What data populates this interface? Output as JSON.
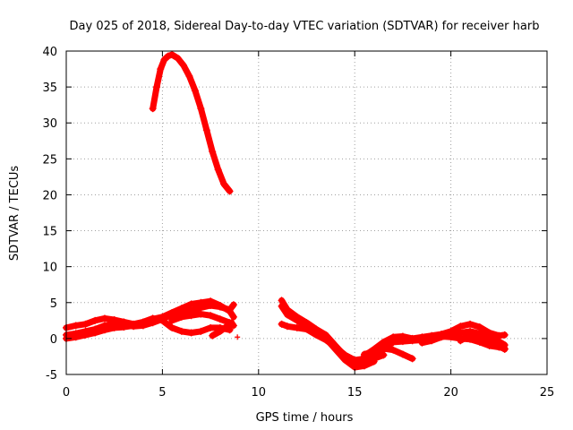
{
  "chart_data": {
    "type": "scatter",
    "title": "Day 025 of 2018, Sidereal Day-to-day VTEC variation (SDTVAR) for receiver harb",
    "xlabel": "GPS time / hours",
    "ylabel": "SDTVAR / TECUs",
    "xlim": [
      0,
      25
    ],
    "ylim": [
      -5,
      40
    ],
    "xticks": [
      0,
      5,
      10,
      15,
      20,
      25
    ],
    "yticks": [
      -5,
      0,
      5,
      10,
      15,
      20,
      25,
      30,
      35,
      40
    ],
    "grid": true,
    "color": "#ff0000",
    "marker": "+",
    "series": [
      {
        "name": "peak",
        "x": [
          4.5,
          4.7,
          4.9,
          5.1,
          5.3,
          5.5,
          5.8,
          6.1,
          6.4,
          6.7,
          7.0,
          7.3,
          7.6,
          7.9,
          8.2,
          8.5
        ],
        "y": [
          32,
          35,
          37.5,
          38.8,
          39.3,
          39.5,
          39,
          38,
          36.5,
          34.5,
          32,
          29,
          26,
          23.5,
          21.5,
          20.5
        ]
      },
      {
        "name": "early-a",
        "x": [
          0,
          0.5,
          1,
          1.5,
          2,
          2.5,
          3,
          3.5,
          4,
          4.5,
          5,
          5.5,
          6,
          6.5,
          7,
          7.5,
          8,
          8.5
        ],
        "y": [
          1.5,
          1.8,
          2,
          2.5,
          2.8,
          2.6,
          2.3,
          2,
          2.3,
          2.8,
          2.5,
          1.5,
          1,
          0.8,
          1,
          1.5,
          1.5,
          1.2
        ]
      },
      {
        "name": "early-b",
        "x": [
          0,
          0.5,
          1,
          1.5,
          2,
          2.5,
          3,
          3.5,
          4,
          4.5,
          5,
          5.5,
          6,
          6.5,
          7,
          7.5,
          8,
          8.5,
          8.7
        ],
        "y": [
          0.5,
          0.7,
          1,
          1.3,
          1.8,
          2,
          1.9,
          1.7,
          1.8,
          2.2,
          2.7,
          3.3,
          3.6,
          3.9,
          4.3,
          4.6,
          4.4,
          4,
          4.7
        ]
      },
      {
        "name": "early-c",
        "x": [
          0,
          0.5,
          1,
          1.5,
          2,
          2.5,
          3,
          3.5,
          4,
          4.5,
          5,
          5.5,
          6,
          6.5,
          7,
          7.5,
          8,
          8.5,
          8.7
        ],
        "y": [
          0,
          0.2,
          0.5,
          0.8,
          1.2,
          1.5,
          1.6,
          1.8,
          2.2,
          2.7,
          3,
          3.6,
          4.2,
          4.8,
          5,
          5.2,
          4.6,
          3.8,
          3
        ]
      },
      {
        "name": "early-d",
        "x": [
          5.5,
          6,
          6.5,
          7,
          7.5,
          8,
          8.5,
          8.7
        ],
        "y": [
          2.5,
          3,
          3.2,
          3.4,
          3.2,
          2.7,
          2.2,
          1.8
        ]
      },
      {
        "name": "early-e",
        "x": [
          7.6,
          8,
          8.3,
          8.6
        ],
        "y": [
          0.4,
          1,
          1.6,
          2.2
        ]
      },
      {
        "name": "late-a",
        "x": [
          11.2,
          11.5,
          12,
          12.5,
          13,
          13.5,
          14,
          14.5,
          15,
          15.5,
          16,
          16.5
        ],
        "y": [
          5.3,
          4,
          3,
          2.2,
          1.3,
          0.5,
          -1,
          -2.5,
          -3.5,
          -3.3,
          -2.8,
          -2.3
        ]
      },
      {
        "name": "late-b",
        "x": [
          11.2,
          11.5,
          12,
          12.5,
          13,
          13.5,
          14,
          14.5,
          15,
          15.5,
          16
        ],
        "y": [
          4.5,
          3.3,
          2.5,
          1.7,
          1,
          0,
          -1.5,
          -3,
          -4,
          -3.8,
          -3.2
        ]
      },
      {
        "name": "late-c",
        "x": [
          11.2,
          11.5,
          12,
          12.5,
          13,
          13.5,
          14,
          14.5,
          15,
          15.5,
          16
        ],
        "y": [
          2,
          1.7,
          1.5,
          1.3,
          0.5,
          -0.2,
          -1.2,
          -2.3,
          -3,
          -2.8,
          -2.3
        ]
      },
      {
        "name": "late-d",
        "x": [
          15.5,
          16,
          16.5,
          17,
          17.5,
          18
        ],
        "y": [
          -2.2,
          -1.8,
          -1.4,
          -1.6,
          -2.2,
          -2.8
        ]
      },
      {
        "name": "late-e",
        "x": [
          15.5,
          16,
          16.5,
          17,
          17.5,
          18,
          18.5,
          19,
          19.5,
          20,
          20.5,
          21,
          21.5,
          22,
          22.5,
          22.8
        ],
        "y": [
          -2.4,
          -1.5,
          -0.5,
          0.2,
          0.3,
          0,
          0.2,
          0.4,
          0.6,
          1,
          1.7,
          2,
          1.6,
          0.8,
          0.4,
          0.5
        ]
      },
      {
        "name": "late-f",
        "x": [
          16,
          16.5,
          17,
          17.5,
          18,
          18.5,
          19,
          19.5,
          20,
          20.5,
          21,
          21.5,
          22,
          22.5,
          22.8
        ],
        "y": [
          -2.8,
          -1.5,
          -0.5,
          -0.4,
          -0.3,
          -0.2,
          0,
          0.3,
          0.2,
          0,
          -0.1,
          -0.5,
          -1,
          -1.2,
          -1.4
        ]
      },
      {
        "name": "late-g",
        "x": [
          18.5,
          19,
          19.5,
          20,
          20.5,
          21,
          21.5,
          22,
          22.5,
          22.8
        ],
        "y": [
          -0.6,
          -0.3,
          0.2,
          0.5,
          0.8,
          1,
          0.7,
          0.2,
          -0.4,
          -0.9
        ]
      },
      {
        "name": "late-h",
        "x": [
          20.5,
          21,
          21.5,
          22,
          22.5,
          22.8
        ],
        "y": [
          -0.3,
          0.5,
          0.2,
          -0.5,
          -1,
          -1.5
        ]
      }
    ],
    "outliers": {
      "x": [
        8.9
      ],
      "y": [
        0.2
      ]
    }
  }
}
